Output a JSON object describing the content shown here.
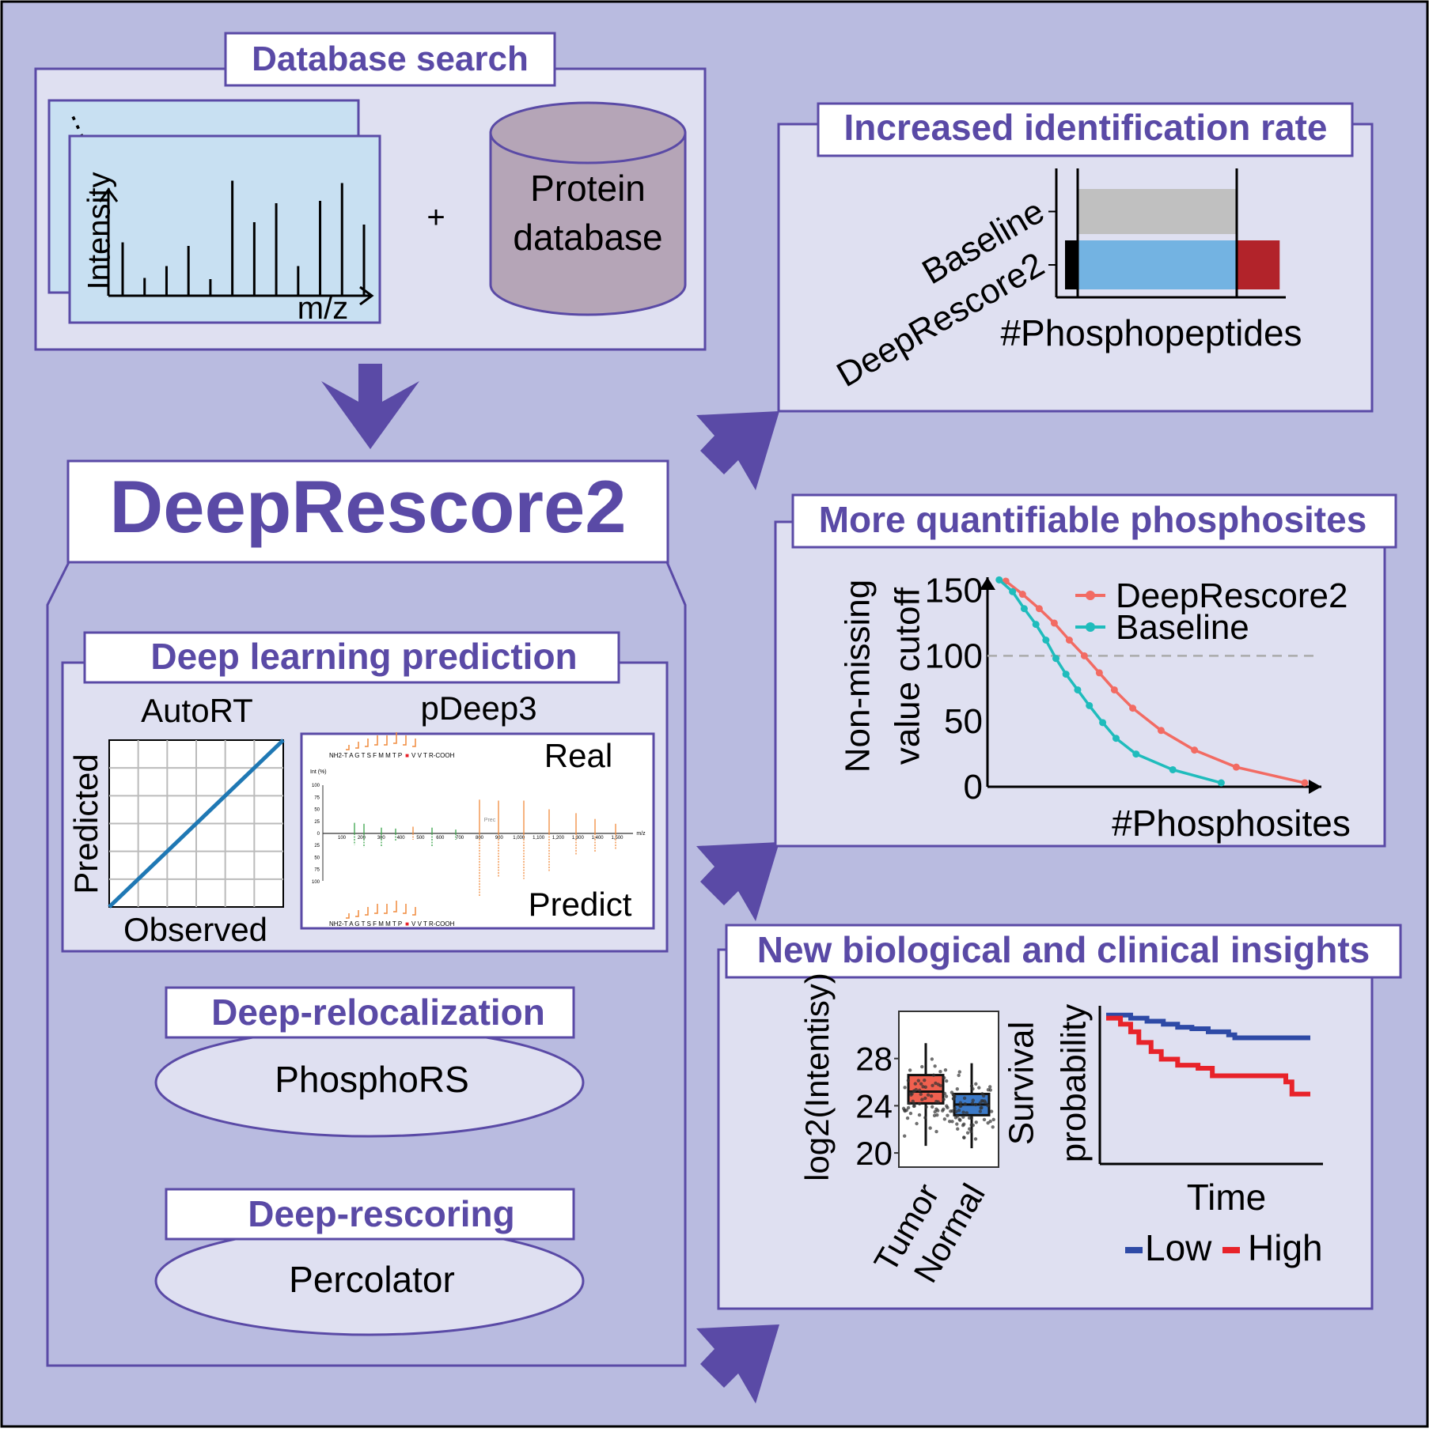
{
  "colors": {
    "background": "#b9bbe0",
    "panel": "#dfe0f1",
    "border": "#5a4aa6",
    "accent_text": "#5a4aa6",
    "spectrum_bg": "#c8e0f2",
    "cylinder": "#b5a5b7",
    "salmon": "#f26b63",
    "teal": "#1fbcbc",
    "bar_gray": "#c0c0c0",
    "bar_blue": "#73b3e2",
    "bar_red": "#b2232a",
    "low_blue": "#2e4aa6",
    "high_red": "#e8232a",
    "diag_line": "#1f78b4",
    "orange_peaks": "#f08a3c",
    "green_peaks": "#3aa34a"
  },
  "database_search": {
    "title": "Database search",
    "dots": "⋮",
    "ylabel": "Intensity",
    "xlabel": "m/z",
    "plus": "+",
    "db_line1": "Protein",
    "db_line2": "database",
    "spectrum_peaks": [
      0.45,
      0.15,
      0.25,
      0.42,
      0.14,
      0.97,
      0.62,
      0.78,
      0.25,
      0.8,
      0.95,
      0.6
    ]
  },
  "main_title": "DeepRescore2",
  "deep_learning": {
    "title": "Deep learning prediction",
    "autort_label": "AutoRT",
    "autort_ylabel": "Predicted",
    "autort_xlabel": "Observed",
    "pdeep_label": "pDeep3",
    "real_label": "Real",
    "predict_label": "Predict",
    "seq_top": "NH2-T A G T S F M M T P",
    "seq_top_tail": "V V T R-COOH",
    "seq_bottom": "NH2-T A G T S F M M T P",
    "seq_bottom_tail": "V V T R-COOH",
    "ms_xticks": [
      "100",
      "200",
      "300",
      "400",
      "500",
      "600",
      "700",
      "800",
      "900",
      "1,000",
      "1,100",
      "1,200",
      "1,300",
      "1,400",
      "1,500"
    ],
    "ms_xunit": "m/z",
    "ms_yunit": "Int (%)",
    "ms_yticks_up": [
      "100",
      "75",
      "50",
      "25",
      "0"
    ],
    "ms_yticks_down": [
      "25",
      "50",
      "75",
      "100"
    ],
    "ms_prec": "Prec"
  },
  "relocalization": {
    "title": "Deep-relocalization",
    "tool": "PhosphoRS"
  },
  "rescoring": {
    "title": "Deep-rescoring",
    "tool": "Percolator"
  },
  "identification": {
    "title": "Increased identification rate",
    "xlabel": "#Phosphopeptides",
    "chart_data": {
      "type": "bar",
      "categories": [
        "Baseline",
        "DeepRescore2"
      ],
      "series": [
        {
          "name": "",
          "values": [
            1.0,
            1.0
          ]
        },
        {
          "name": "",
          "values": [
            0,
            0.27
          ]
        }
      ],
      "xlabel": "#Phosphopeptides",
      "grid": false
    }
  },
  "quantifiable": {
    "title": "More quantifiable phosphosites",
    "ylabel_line1": "Non-missing",
    "ylabel_line2": "value cutoff",
    "xlabel": "#Phosphosites",
    "chart_data": {
      "type": "line",
      "ylabel": "Non-missing value cutoff",
      "xlabel": "#Phosphosites",
      "yticks": [
        0,
        50,
        100,
        150
      ],
      "ylim": [
        0,
        160
      ],
      "xlim": [
        0,
        1
      ],
      "hline": 100,
      "legend_position": "top-right",
      "series": [
        {
          "name": "DeepRescore2",
          "x": [
            0.055,
            0.105,
            0.155,
            0.2,
            0.245,
            0.29,
            0.335,
            0.38,
            0.435,
            0.52,
            0.62,
            0.745,
            0.95
          ],
          "y": [
            157,
            147,
            136,
            125,
            112,
            100,
            87,
            74,
            60,
            43,
            28,
            15,
            3
          ]
        },
        {
          "name": "Baseline",
          "x": [
            0.035,
            0.075,
            0.11,
            0.145,
            0.175,
            0.205,
            0.235,
            0.27,
            0.305,
            0.345,
            0.385,
            0.445,
            0.555,
            0.7
          ],
          "y": [
            158,
            149,
            136,
            124,
            112,
            98,
            86,
            74,
            62,
            49,
            37,
            25,
            13,
            3
          ]
        }
      ]
    }
  },
  "insights": {
    "title": "New biological and clinical insights",
    "box_ylabel": "log2(Intentisy)",
    "box_yticks": [
      "28",
      "24",
      "20"
    ],
    "box_categories": [
      "Tumor",
      "Normal"
    ],
    "surv_ylabel1": "Survival",
    "surv_ylabel2": "probability",
    "surv_xlabel": "Time",
    "legend_low": "Low",
    "legend_high": "High",
    "chart_data": [
      {
        "type": "box",
        "ylabel": "log2(Intentisy)",
        "categories": [
          "Tumor",
          "Normal"
        ],
        "yticks": [
          20,
          24,
          28
        ],
        "ylim": [
          18.8,
          32
        ],
        "boxes": [
          {
            "name": "Tumor",
            "whisker_low": 20.6,
            "q1": 24.2,
            "median": 25.2,
            "q3": 26.6,
            "whisker_high": 29.3
          },
          {
            "name": "Normal",
            "whisker_low": 20.4,
            "q1": 23.2,
            "median": 24.1,
            "q3": 25.0,
            "whisker_high": 27.6
          }
        ]
      },
      {
        "type": "line",
        "ylabel": "Survival probability",
        "xlabel": "Time",
        "step": true,
        "xlim": [
          0,
          1
        ],
        "ylim": [
          0,
          1
        ],
        "series": [
          {
            "name": "Low",
            "x": [
              0,
              0.12,
              0.2,
              0.28,
              0.35,
              0.42,
              0.5,
              0.6,
              0.63,
              1.0
            ],
            "y": [
              0.97,
              0.95,
              0.93,
              0.91,
              0.89,
              0.88,
              0.86,
              0.84,
              0.82,
              0.82
            ]
          },
          {
            "name": "High",
            "x": [
              0,
              0.07,
              0.12,
              0.16,
              0.22,
              0.27,
              0.35,
              0.45,
              0.52,
              0.88,
              0.91,
              1.0
            ],
            "y": [
              0.95,
              0.91,
              0.86,
              0.79,
              0.73,
              0.68,
              0.64,
              0.62,
              0.57,
              0.53,
              0.45,
              0.45
            ]
          }
        ]
      }
    ]
  }
}
